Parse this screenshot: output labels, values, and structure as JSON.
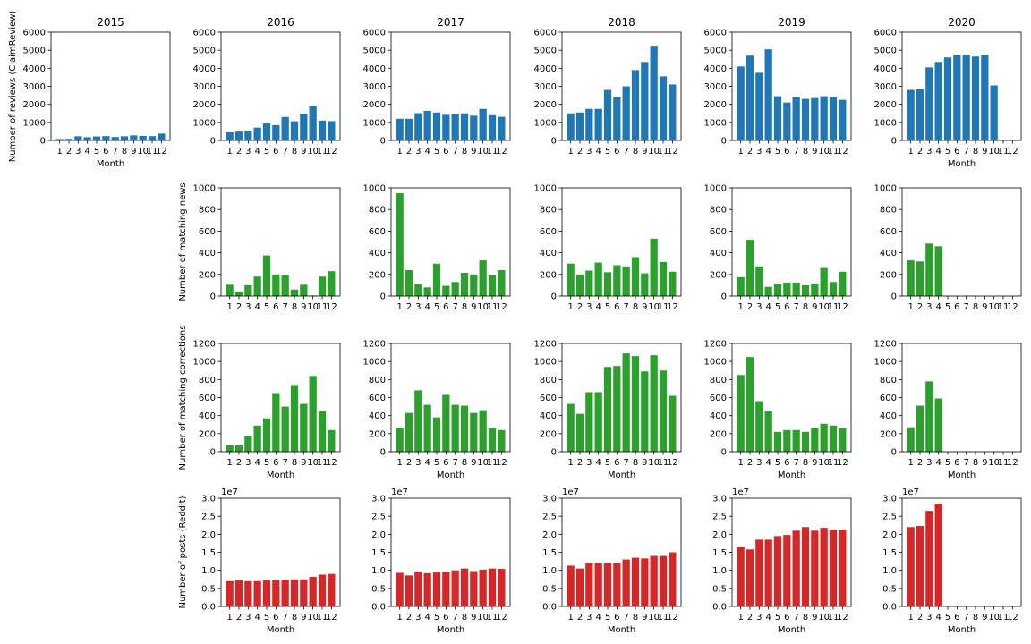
{
  "colors": {
    "reviews": "#1f77b4",
    "news": "#2ca02c",
    "corrections": "#2ca02c",
    "posts": "#d62728"
  },
  "months": [
    "1",
    "2",
    "3",
    "4",
    "5",
    "6",
    "7",
    "8",
    "9",
    "10",
    "11",
    "12"
  ],
  "chart_data": [
    {
      "type": "bar",
      "title": "2015",
      "row": "reviews",
      "year": "2015",
      "ylabel": "Number of reviews (ClaimReview)",
      "xlabel": "Month",
      "ylim": [
        0,
        6000
      ],
      "yticks": [
        "0",
        "1000",
        "2000",
        "3000",
        "4000",
        "5000",
        "6000"
      ],
      "series": [
        {
          "values": [
            80,
            90,
            230,
            180,
            220,
            240,
            190,
            230,
            280,
            250,
            240,
            380
          ]
        }
      ]
    },
    {
      "type": "bar",
      "title": "2016",
      "row": "reviews",
      "year": "2016",
      "ylabel": "",
      "xlabel": "",
      "ylim": [
        0,
        6000
      ],
      "yticks": [
        "0",
        "1000",
        "2000",
        "3000",
        "4000",
        "5000",
        "6000"
      ],
      "series": [
        {
          "values": [
            450,
            490,
            510,
            710,
            940,
            850,
            1300,
            1060,
            1490,
            1900,
            1100,
            1070
          ]
        }
      ]
    },
    {
      "type": "bar",
      "title": "2017",
      "row": "reviews",
      "year": "2017",
      "ylabel": "",
      "xlabel": "",
      "ylim": [
        0,
        6000
      ],
      "yticks": [
        "0",
        "1000",
        "2000",
        "3000",
        "4000",
        "5000",
        "6000"
      ],
      "series": [
        {
          "values": [
            1200,
            1200,
            1510,
            1640,
            1550,
            1420,
            1450,
            1500,
            1370,
            1750,
            1400,
            1310
          ]
        }
      ]
    },
    {
      "type": "bar",
      "title": "2018",
      "row": "reviews",
      "year": "2018",
      "ylabel": "",
      "xlabel": "",
      "ylim": [
        0,
        6000
      ],
      "yticks": [
        "0",
        "1000",
        "2000",
        "3000",
        "4000",
        "5000",
        "6000"
      ],
      "series": [
        {
          "values": [
            1500,
            1550,
            1750,
            1750,
            2800,
            2400,
            3000,
            3900,
            4350,
            5250,
            3550,
            3100
          ]
        }
      ]
    },
    {
      "type": "bar",
      "title": "2019",
      "row": "reviews",
      "year": "2019",
      "ylabel": "",
      "xlabel": "",
      "ylim": [
        0,
        6000
      ],
      "yticks": [
        "0",
        "1000",
        "2000",
        "3000",
        "4000",
        "5000",
        "6000"
      ],
      "series": [
        {
          "values": [
            4100,
            4700,
            3750,
            5050,
            2450,
            2100,
            2400,
            2300,
            2350,
            2450,
            2400,
            2250
          ]
        }
      ]
    },
    {
      "type": "bar",
      "title": "2020",
      "row": "reviews",
      "year": "2020",
      "ylabel": "",
      "xlabel": "Month",
      "ylim": [
        0,
        6000
      ],
      "yticks": [
        "0",
        "1000",
        "2000",
        "3000",
        "4000",
        "5000",
        "6000"
      ],
      "series": [
        {
          "values": [
            2800,
            2850,
            4050,
            4350,
            4600,
            4750,
            4750,
            4650,
            4750,
            3050,
            0,
            0
          ]
        }
      ]
    },
    {
      "type": "bar",
      "title": "",
      "row": "news",
      "year": "2016",
      "ylabel": "Number of matching news",
      "xlabel": "",
      "ylim": [
        0,
        1000
      ],
      "yticks": [
        "0",
        "200",
        "400",
        "600",
        "800",
        "1000"
      ],
      "series": [
        {
          "values": [
            105,
            40,
            100,
            180,
            375,
            200,
            190,
            60,
            105,
            5,
            180,
            230
          ]
        }
      ]
    },
    {
      "type": "bar",
      "title": "",
      "row": "news",
      "year": "2017",
      "ylabel": "",
      "xlabel": "",
      "ylim": [
        0,
        1000
      ],
      "yticks": [
        "0",
        "200",
        "400",
        "600",
        "800",
        "1000"
      ],
      "series": [
        {
          "values": [
            950,
            240,
            110,
            80,
            300,
            95,
            130,
            215,
            200,
            330,
            190,
            240
          ]
        }
      ]
    },
    {
      "type": "bar",
      "title": "",
      "row": "news",
      "year": "2018",
      "ylabel": "",
      "xlabel": "",
      "ylim": [
        0,
        1000
      ],
      "yticks": [
        "0",
        "200",
        "400",
        "600",
        "800",
        "1000"
      ],
      "series": [
        {
          "values": [
            300,
            200,
            235,
            310,
            220,
            285,
            275,
            360,
            210,
            530,
            315,
            225
          ]
        }
      ]
    },
    {
      "type": "bar",
      "title": "",
      "row": "news",
      "year": "2019",
      "ylabel": "",
      "xlabel": "",
      "ylim": [
        0,
        1000
      ],
      "yticks": [
        "0",
        "200",
        "400",
        "600",
        "800",
        "1000"
      ],
      "series": [
        {
          "values": [
            175,
            520,
            275,
            85,
            110,
            125,
            125,
            100,
            115,
            260,
            130,
            225
          ]
        }
      ]
    },
    {
      "type": "bar",
      "title": "",
      "row": "news",
      "year": "2020",
      "ylabel": "",
      "xlabel": "",
      "ylim": [
        0,
        1000
      ],
      "yticks": [
        "0",
        "200",
        "400",
        "600",
        "800",
        "1000"
      ],
      "series": [
        {
          "values": [
            330,
            320,
            485,
            460,
            0,
            0,
            0,
            0,
            0,
            0,
            0,
            0
          ]
        }
      ]
    },
    {
      "type": "bar",
      "title": "",
      "row": "corrections",
      "year": "2016",
      "ylabel": "Number of matching corrections",
      "xlabel": "Month",
      "ylim": [
        0,
        1200
      ],
      "yticks": [
        "0",
        "200",
        "400",
        "600",
        "800",
        "1000",
        "1200"
      ],
      "series": [
        {
          "values": [
            70,
            70,
            170,
            290,
            370,
            650,
            500,
            740,
            530,
            840,
            450,
            240
          ]
        }
      ]
    },
    {
      "type": "bar",
      "title": "",
      "row": "corrections",
      "year": "2017",
      "ylabel": "",
      "xlabel": "Month",
      "ylim": [
        0,
        1200
      ],
      "yticks": [
        "0",
        "200",
        "400",
        "600",
        "800",
        "1000",
        "1200"
      ],
      "series": [
        {
          "values": [
            260,
            430,
            680,
            520,
            380,
            630,
            520,
            510,
            430,
            460,
            260,
            240
          ]
        }
      ]
    },
    {
      "type": "bar",
      "title": "",
      "row": "corrections",
      "year": "2018",
      "ylabel": "",
      "xlabel": "Month",
      "ylim": [
        0,
        1200
      ],
      "yticks": [
        "0",
        "200",
        "400",
        "600",
        "800",
        "1000",
        "1200"
      ],
      "series": [
        {
          "values": [
            530,
            420,
            660,
            660,
            940,
            950,
            1090,
            1060,
            890,
            1070,
            900,
            620
          ]
        }
      ]
    },
    {
      "type": "bar",
      "title": "",
      "row": "corrections",
      "year": "2019",
      "ylabel": "",
      "xlabel": "Month",
      "ylim": [
        0,
        1200
      ],
      "yticks": [
        "0",
        "200",
        "400",
        "600",
        "800",
        "1000",
        "1200"
      ],
      "series": [
        {
          "values": [
            850,
            1050,
            560,
            450,
            220,
            240,
            240,
            220,
            260,
            310,
            290,
            260
          ]
        }
      ]
    },
    {
      "type": "bar",
      "title": "",
      "row": "corrections",
      "year": "2020",
      "ylabel": "",
      "xlabel": "Month",
      "ylim": [
        0,
        1200
      ],
      "yticks": [
        "0",
        "200",
        "400",
        "600",
        "800",
        "1000",
        "1200"
      ],
      "series": [
        {
          "values": [
            270,
            510,
            780,
            590,
            0,
            0,
            0,
            0,
            0,
            0,
            0,
            0
          ]
        }
      ]
    },
    {
      "type": "bar",
      "title": "",
      "row": "posts",
      "year": "2016",
      "ylabel": "Number of posts (Reddit)",
      "xlabel": "Month",
      "ylim": [
        0,
        3.0
      ],
      "yticks": [
        "0.0",
        "0.5",
        "1.0",
        "1.5",
        "2.0",
        "2.5",
        "3.0"
      ],
      "scale_label": "1e7",
      "series": [
        {
          "values": [
            0.7,
            0.72,
            0.7,
            0.7,
            0.72,
            0.72,
            0.74,
            0.75,
            0.75,
            0.82,
            0.88,
            0.9
          ]
        }
      ]
    },
    {
      "type": "bar",
      "title": "",
      "row": "posts",
      "year": "2017",
      "ylabel": "",
      "xlabel": "Month",
      "ylim": [
        0,
        3.0
      ],
      "yticks": [
        "0.0",
        "0.5",
        "1.0",
        "1.5",
        "2.0",
        "2.5",
        "3.0"
      ],
      "scale_label": "1e7",
      "series": [
        {
          "values": [
            0.93,
            0.86,
            0.97,
            0.92,
            0.94,
            0.95,
            1.0,
            1.05,
            0.98,
            1.02,
            1.05,
            1.04
          ]
        }
      ]
    },
    {
      "type": "bar",
      "title": "",
      "row": "posts",
      "year": "2018",
      "ylabel": "",
      "xlabel": "Month",
      "ylim": [
        0,
        3.0
      ],
      "yticks": [
        "0.0",
        "0.5",
        "1.0",
        "1.5",
        "2.0",
        "2.5",
        "3.0"
      ],
      "scale_label": "1e7",
      "series": [
        {
          "values": [
            1.13,
            1.05,
            1.2,
            1.2,
            1.2,
            1.2,
            1.3,
            1.35,
            1.33,
            1.4,
            1.4,
            1.5
          ]
        }
      ]
    },
    {
      "type": "bar",
      "title": "",
      "row": "posts",
      "year": "2019",
      "ylabel": "",
      "xlabel": "Month",
      "ylim": [
        0,
        3.0
      ],
      "yticks": [
        "0.0",
        "0.5",
        "1.0",
        "1.5",
        "2.0",
        "2.5",
        "3.0"
      ],
      "scale_label": "1e7",
      "series": [
        {
          "values": [
            1.65,
            1.58,
            1.85,
            1.85,
            1.95,
            1.98,
            2.1,
            2.2,
            2.1,
            2.18,
            2.13,
            2.13
          ]
        }
      ]
    },
    {
      "type": "bar",
      "title": "",
      "row": "posts",
      "year": "2020",
      "ylabel": "",
      "xlabel": "Month",
      "ylim": [
        0,
        3.0
      ],
      "yticks": [
        "0.0",
        "0.5",
        "1.0",
        "1.5",
        "2.0",
        "2.5",
        "3.0"
      ],
      "scale_label": "1e7",
      "series": [
        {
          "values": [
            2.2,
            2.23,
            2.65,
            2.85,
            0,
            0,
            0,
            0,
            0,
            0,
            0,
            0
          ]
        }
      ]
    }
  ]
}
